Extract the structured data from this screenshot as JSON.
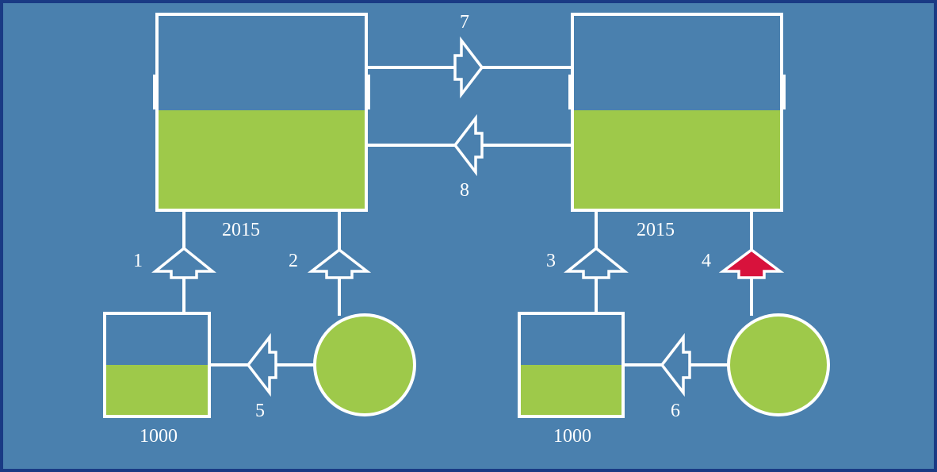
{
  "colors": {
    "background": "#4a80ae",
    "border": "#1a3a84",
    "stroke": "#ffffff",
    "fill_level": "#9ec94a",
    "highlight_arrow": "#d8123c"
  },
  "tanks": {
    "left_large": {
      "label": "2015",
      "fill_fraction": 0.51
    },
    "right_large": {
      "label": "2015",
      "fill_fraction": 0.51
    },
    "left_small": {
      "label": "1000",
      "fill_fraction": 0.5
    },
    "right_small": {
      "label": "1000",
      "fill_fraction": 0.5
    }
  },
  "flows": {
    "f1": "1",
    "f2": "2",
    "f3": "3",
    "f4": "4",
    "f5": "5",
    "f6": "6",
    "f7": "7",
    "f8": "8"
  },
  "highlighted_flow": "4"
}
